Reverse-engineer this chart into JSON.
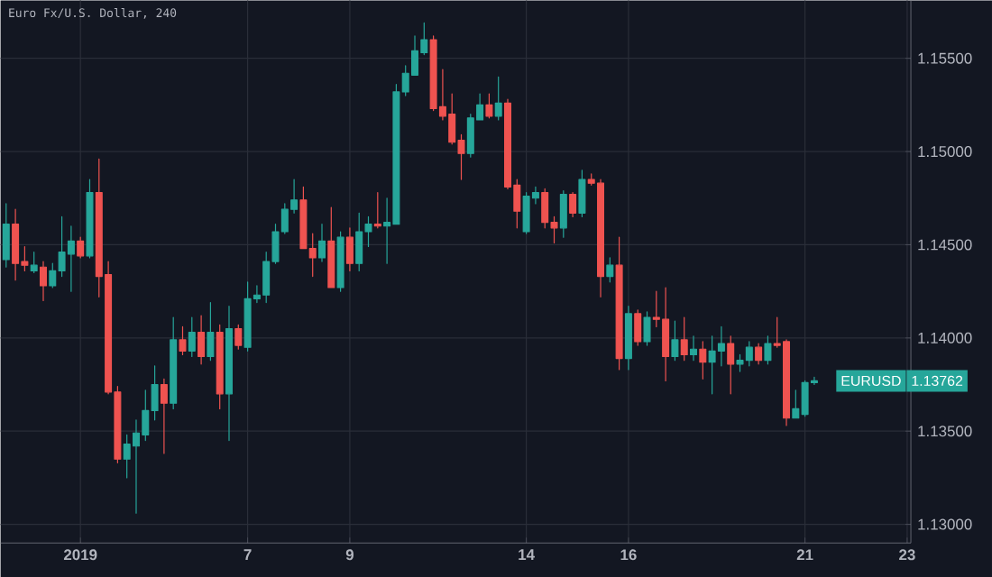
{
  "chart_data": {
    "type": "candlestick",
    "title": "Euro Fx/U.S. Dollar, 240",
    "categories": [
      null,
      null,
      null,
      null,
      null,
      null,
      null,
      null,
      "2019",
      null,
      null,
      null,
      null,
      null,
      null,
      null,
      null,
      null,
      null,
      null,
      null,
      null,
      null,
      null,
      null,
      null,
      "7",
      null,
      null,
      null,
      null,
      null,
      null,
      null,
      null,
      null,
      null,
      "9",
      null,
      null,
      null,
      null,
      null,
      null,
      null,
      null,
      null,
      null,
      null,
      null,
      null,
      null,
      null,
      null,
      null,
      null,
      "14",
      null,
      null,
      null,
      null,
      null,
      null,
      null,
      null,
      null,
      null,
      "16",
      null,
      null,
      null,
      null,
      null,
      null,
      null,
      null,
      null,
      null,
      null,
      null,
      null,
      null,
      null,
      null,
      null,
      null,
      "21",
      null,
      null,
      null,
      null,
      null,
      null,
      null,
      null,
      null,
      null,
      "23"
    ],
    "ohlc": [
      [
        1.1442,
        1.1472,
        1.1438,
        1.1461
      ],
      [
        1.1461,
        1.1469,
        1.1431,
        1.144
      ],
      [
        1.1441,
        1.1449,
        1.1436,
        1.1439
      ],
      [
        1.1436,
        1.1446,
        1.1435,
        1.1439
      ],
      [
        1.1438,
        1.1441,
        1.142,
        1.1428
      ],
      [
        1.1428,
        1.144,
        1.1427,
        1.1436
      ],
      [
        1.1436,
        1.1465,
        1.1433,
        1.1446
      ],
      [
        1.1445,
        1.146,
        1.1425,
        1.1452
      ],
      [
        1.1452,
        1.1454,
        1.1443,
        1.1444
      ],
      [
        1.1444,
        1.1485,
        1.1443,
        1.1478
      ],
      [
        1.1478,
        1.1496,
        1.1422,
        1.1433
      ],
      [
        1.1434,
        1.1441,
        1.137,
        1.1371
      ],
      [
        1.1371,
        1.1374,
        1.1333,
        1.1335
      ],
      [
        1.1335,
        1.1348,
        1.1325,
        1.1343
      ],
      [
        1.1342,
        1.1356,
        1.1306,
        1.1349
      ],
      [
        1.1348,
        1.1372,
        1.1345,
        1.1361
      ],
      [
        1.1361,
        1.1385,
        1.1356,
        1.1375
      ],
      [
        1.1375,
        1.1378,
        1.1338,
        1.1365
      ],
      [
        1.1365,
        1.1411,
        1.1362,
        1.1399
      ],
      [
        1.1399,
        1.1406,
        1.1391,
        1.1393
      ],
      [
        1.1393,
        1.1411,
        1.139,
        1.1403
      ],
      [
        1.1403,
        1.1412,
        1.1386,
        1.139
      ],
      [
        1.139,
        1.1419,
        1.1388,
        1.1403
      ],
      [
        1.1403,
        1.1407,
        1.1362,
        1.137
      ],
      [
        1.137,
        1.1417,
        1.1345,
        1.1405
      ],
      [
        1.1405,
        1.1407,
        1.1394,
        1.1396
      ],
      [
        1.1395,
        1.143,
        1.1393,
        1.1421
      ],
      [
        1.1421,
        1.1428,
        1.1419,
        1.1423
      ],
      [
        1.1423,
        1.1446,
        1.1419,
        1.1441
      ],
      [
        1.1441,
        1.1461,
        1.144,
        1.1457
      ],
      [
        1.1457,
        1.1472,
        1.1456,
        1.1469
      ],
      [
        1.1469,
        1.1485,
        1.1467,
        1.1474
      ],
      [
        1.1474,
        1.1481,
        1.1448,
        1.1448
      ],
      [
        1.1448,
        1.1456,
        1.1433,
        1.1443
      ],
      [
        1.1443,
        1.1461,
        1.1441,
        1.1452
      ],
      [
        1.1452,
        1.147,
        1.1427,
        1.1427
      ],
      [
        1.1427,
        1.1457,
        1.1425,
        1.1454
      ],
      [
        1.1454,
        1.1459,
        1.1436,
        1.144
      ],
      [
        1.144,
        1.1467,
        1.1436,
        1.1457
      ],
      [
        1.1457,
        1.1465,
        1.1449,
        1.1461
      ],
      [
        1.1461,
        1.1478,
        1.1459,
        1.146
      ],
      [
        1.146,
        1.1475,
        1.144,
        1.1462
      ],
      [
        1.1461,
        1.1536,
        1.1461,
        1.1532
      ],
      [
        1.1532,
        1.1546,
        1.153,
        1.1542
      ],
      [
        1.1541,
        1.1562,
        1.1541,
        1.1554
      ],
      [
        1.1553,
        1.1569,
        1.1552,
        1.156
      ],
      [
        1.156,
        1.1562,
        1.1522,
        1.1523
      ],
      [
        1.1524,
        1.1544,
        1.1517,
        1.1519
      ],
      [
        1.152,
        1.1531,
        1.1504,
        1.1505
      ],
      [
        1.1506,
        1.1509,
        1.1485,
        1.1499
      ],
      [
        1.1499,
        1.152,
        1.1497,
        1.1518
      ],
      [
        1.1517,
        1.1531,
        1.1517,
        1.1525
      ],
      [
        1.1525,
        1.1531,
        1.1518,
        1.1519
      ],
      [
        1.1519,
        1.154,
        1.1517,
        1.1526
      ],
      [
        1.1526,
        1.1528,
        1.148,
        1.1481
      ],
      [
        1.1482,
        1.1485,
        1.1459,
        1.1468
      ],
      [
        1.1457,
        1.1478,
        1.1456,
        1.1476
      ],
      [
        1.1475,
        1.1481,
        1.1472,
        1.1478
      ],
      [
        1.1478,
        1.148,
        1.1459,
        1.1462
      ],
      [
        1.1462,
        1.1465,
        1.1451,
        1.1459
      ],
      [
        1.1459,
        1.1479,
        1.1454,
        1.1477
      ],
      [
        1.1477,
        1.1478,
        1.1465,
        1.1467
      ],
      [
        1.1467,
        1.149,
        1.1465,
        1.1485
      ],
      [
        1.1485,
        1.1488,
        1.1482,
        1.1483
      ],
      [
        1.1483,
        1.1485,
        1.1422,
        1.1433
      ],
      [
        1.1433,
        1.1443,
        1.143,
        1.1439
      ],
      [
        1.1439,
        1.1454,
        1.1383,
        1.1389
      ],
      [
        1.1389,
        1.1417,
        1.1383,
        1.1413
      ],
      [
        1.1413,
        1.1415,
        1.1396,
        1.1398
      ],
      [
        1.1398,
        1.1414,
        1.1396,
        1.1411
      ],
      [
        1.1411,
        1.1425,
        1.1406,
        1.141
      ],
      [
        1.141,
        1.1427,
        1.1377,
        1.139
      ],
      [
        1.139,
        1.1409,
        1.1388,
        1.1399
      ],
      [
        1.1399,
        1.1411,
        1.1388,
        1.1391
      ],
      [
        1.1391,
        1.1401,
        1.1388,
        1.1394
      ],
      [
        1.1394,
        1.1398,
        1.1378,
        1.1387
      ],
      [
        1.1387,
        1.1401,
        1.137,
        1.1393
      ],
      [
        1.1393,
        1.1406,
        1.1385,
        1.1397
      ],
      [
        1.1397,
        1.1401,
        1.137,
        1.1386
      ],
      [
        1.1386,
        1.1391,
        1.1382,
        1.1388
      ],
      [
        1.1388,
        1.1398,
        1.1385,
        1.1395
      ],
      [
        1.1395,
        1.1397,
        1.1386,
        1.1388
      ],
      [
        1.1388,
        1.1401,
        1.1386,
        1.1397
      ],
      [
        1.1397,
        1.1411,
        1.1395,
        1.1396
      ],
      [
        1.1398,
        1.1399,
        1.1353,
        1.1357
      ],
      [
        1.1357,
        1.1372,
        1.1357,
        1.1362
      ],
      [
        1.1359,
        1.1377,
        1.1358,
        1.1376
      ],
      [
        1.1376,
        1.1379,
        1.1375,
        1.1377
      ],
      null,
      null,
      null,
      null,
      null,
      null,
      null,
      null,
      null,
      null
    ],
    "colors": [
      "#26a69a",
      "#ef5350",
      "#ef5350",
      "#26a69a",
      "#ef5350",
      "#26a69a",
      "#26a69a",
      "#26a69a",
      "#ef5350",
      "#26a69a",
      "#ef5350",
      "#ef5350",
      "#ef5350",
      "#26a69a",
      "#26a69a",
      "#26a69a",
      "#26a69a",
      "#ef5350",
      "#26a69a",
      "#ef5350",
      "#26a69a",
      "#ef5350",
      "#26a69a",
      "#ef5350",
      "#26a69a",
      "#ef5350",
      "#26a69a",
      "#26a69a",
      "#26a69a",
      "#26a69a",
      "#26a69a",
      "#26a69a",
      "#ef5350",
      "#ef5350",
      "#26a69a",
      "#ef5350",
      "#26a69a",
      "#ef5350",
      "#26a69a",
      "#26a69a",
      "#ef5350",
      "#26a69a",
      "#26a69a",
      "#26a69a",
      "#26a69a",
      "#26a69a",
      "#ef5350",
      "#ef5350",
      "#ef5350",
      "#ef5350",
      "#26a69a",
      "#26a69a",
      "#ef5350",
      "#26a69a",
      "#ef5350",
      "#ef5350",
      "#26a69a",
      "#26a69a",
      "#ef5350",
      "#ef5350",
      "#26a69a",
      "#ef5350",
      "#26a69a",
      "#ef5350",
      "#ef5350",
      "#26a69a",
      "#ef5350",
      "#26a69a",
      "#ef5350",
      "#26a69a",
      "#ef5350",
      "#ef5350",
      "#26a69a",
      "#ef5350",
      "#26a69a",
      "#ef5350",
      "#26a69a",
      "#26a69a",
      "#ef5350",
      "#26a69a",
      "#26a69a",
      "#ef5350",
      "#26a69a",
      "#ef5350",
      "#ef5350",
      "#26a69a",
      "#26a69a",
      "#26a69a",
      null,
      null,
      null,
      null,
      null,
      null,
      null,
      null,
      null,
      null
    ],
    "ylim": [
      1.129,
      1.1581
    ],
    "yticks": [
      {
        "value": 1.13,
        "label": "1.13000"
      },
      {
        "value": 1.135,
        "label": "1.13500"
      },
      {
        "value": 1.14,
        "label": "1.14000"
      },
      {
        "value": 1.145,
        "label": "1.14500"
      },
      {
        "value": 1.15,
        "label": "1.15000"
      },
      {
        "value": 1.155,
        "label": "1.15500"
      }
    ],
    "grid": true,
    "annotations": [
      "EURUSD",
      "1.13762"
    ]
  }
}
